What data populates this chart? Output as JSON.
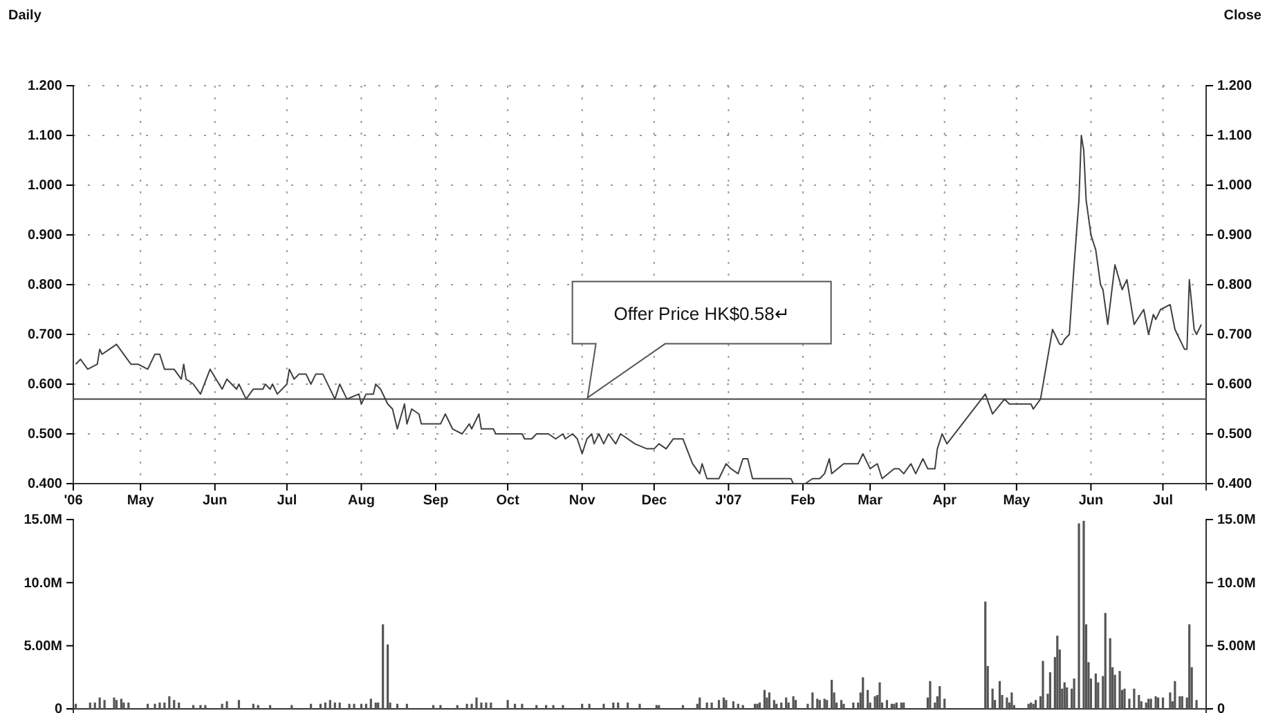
{
  "chart_data": [
    {
      "type": "line",
      "title": "Daily",
      "y2label": "Close",
      "grid": true,
      "xlim": [
        "2006-04-03",
        "2007-07-19"
      ],
      "xticks": [
        {
          "value": "2006-04-03",
          "label": "'06"
        },
        {
          "value": "2006-05-01",
          "label": "May"
        },
        {
          "value": "2006-06-01",
          "label": "Jun"
        },
        {
          "value": "2006-07-01",
          "label": "Jul"
        },
        {
          "value": "2006-08-01",
          "label": "Aug"
        },
        {
          "value": "2006-09-01",
          "label": "Sep"
        },
        {
          "value": "2006-10-01",
          "label": "Oct"
        },
        {
          "value": "2006-11-01",
          "label": "Nov"
        },
        {
          "value": "2006-12-01",
          "label": "Dec"
        },
        {
          "value": "2007-01-01",
          "label": "J'07"
        },
        {
          "value": "2007-02-01",
          "label": "Feb"
        },
        {
          "value": "2007-03-01",
          "label": "Mar"
        },
        {
          "value": "2007-04-01",
          "label": "Apr"
        },
        {
          "value": "2007-05-01",
          "label": "May"
        },
        {
          "value": "2007-06-01",
          "label": "Jun"
        },
        {
          "value": "2007-07-01",
          "label": "Jul"
        }
      ],
      "ylim": [
        0.4,
        1.2
      ],
      "yticks": [
        {
          "value": 0.4,
          "label": "0.400"
        },
        {
          "value": 0.5,
          "label": "0.500"
        },
        {
          "value": 0.6,
          "label": "0.600"
        },
        {
          "value": 0.7,
          "label": "0.700"
        },
        {
          "value": 0.8,
          "label": "0.800"
        },
        {
          "value": 0.9,
          "label": "0.900"
        },
        {
          "value": 1.0,
          "label": "1.000"
        },
        {
          "value": 1.1,
          "label": "1.100"
        },
        {
          "value": 1.2,
          "label": "1.200"
        }
      ],
      "y2lim": [
        0.4,
        1.2
      ],
      "y2ticks": [
        {
          "value": 0.4,
          "label": "0.400"
        },
        {
          "value": 0.5,
          "label": "0.500"
        },
        {
          "value": 0.6,
          "label": "0.600"
        },
        {
          "value": 0.7,
          "label": "0.700"
        },
        {
          "value": 0.8,
          "label": "0.800"
        },
        {
          "value": 0.9,
          "label": "0.900"
        },
        {
          "value": 1.0,
          "label": "1.000"
        },
        {
          "value": 1.1,
          "label": "1.100"
        },
        {
          "value": 1.2,
          "label": "1.200"
        }
      ],
      "ref_lines": [
        {
          "axis": "y",
          "value": 0.57,
          "color": "#555555"
        }
      ],
      "annotations": [
        "Offer Price HK$0.58↵"
      ],
      "series": [
        {
          "color": "#404040",
          "x": [
            "2006-04-04",
            "2006-04-06",
            "2006-04-09",
            "2006-04-13",
            "2006-04-14",
            "2006-04-15",
            "2006-04-21",
            "2006-04-27",
            "2006-04-30",
            "2006-05-04",
            "2006-05-07",
            "2006-05-09",
            "2006-05-11",
            "2006-05-15",
            "2006-05-18",
            "2006-05-19",
            "2006-05-20",
            "2006-05-23",
            "2006-05-26",
            "2006-05-30",
            "2006-06-04",
            "2006-06-06",
            "2006-06-10",
            "2006-06-11",
            "2006-06-14",
            "2006-06-17",
            "2006-06-21",
            "2006-06-22",
            "2006-06-24",
            "2006-06-25",
            "2006-06-27",
            "2006-07-01",
            "2006-07-02",
            "2006-07-04",
            "2006-07-06",
            "2006-07-09",
            "2006-07-11",
            "2006-07-13",
            "2006-07-16",
            "2006-07-21",
            "2006-07-23",
            "2006-07-26",
            "2006-07-31",
            "2006-08-01",
            "2006-08-03",
            "2006-08-06",
            "2006-08-07",
            "2006-08-09",
            "2006-08-12",
            "2006-08-14",
            "2006-08-16",
            "2006-08-19",
            "2006-08-20",
            "2006-08-22",
            "2006-08-25",
            "2006-08-26",
            "2006-09-03",
            "2006-09-05",
            "2006-09-08",
            "2006-09-12",
            "2006-09-15",
            "2006-09-16",
            "2006-09-19",
            "2006-09-20",
            "2006-09-25",
            "2006-09-26",
            "2006-10-07",
            "2006-10-08",
            "2006-10-11",
            "2006-10-13",
            "2006-10-18",
            "2006-10-21",
            "2006-10-24",
            "2006-10-25",
            "2006-10-28",
            "2006-10-30",
            "2006-11-01",
            "2006-11-03",
            "2006-11-05",
            "2006-11-06",
            "2006-11-08",
            "2006-11-10",
            "2006-11-12",
            "2006-11-15",
            "2006-11-17",
            "2006-11-23",
            "2006-11-28",
            "2006-12-01",
            "2006-12-03",
            "2006-12-06",
            "2006-12-09",
            "2006-12-13",
            "2006-12-17",
            "2006-12-20",
            "2006-12-21",
            "2006-12-23",
            "2006-12-28",
            "2006-12-31",
            "2007-01-02",
            "2007-01-05",
            "2007-01-07",
            "2007-01-09",
            "2007-01-11",
            "2007-01-19",
            "2007-01-27",
            "2007-01-28",
            "2007-02-02",
            "2007-02-05",
            "2007-02-08",
            "2007-02-10",
            "2007-02-12",
            "2007-02-13",
            "2007-02-18",
            "2007-02-24",
            "2007-02-26",
            "2007-03-01",
            "2007-03-04",
            "2007-03-06",
            "2007-03-11",
            "2007-03-13",
            "2007-03-15",
            "2007-03-18",
            "2007-03-20",
            "2007-03-23",
            "2007-03-25",
            "2007-03-28",
            "2007-03-29",
            "2007-03-31",
            "2007-04-02",
            "2007-04-18",
            "2007-04-21",
            "2007-04-26",
            "2007-04-28",
            "2007-05-07",
            "2007-05-08",
            "2007-05-11",
            "2007-05-16",
            "2007-05-19",
            "2007-05-20",
            "2007-05-21",
            "2007-05-23",
            "2007-05-25",
            "2007-05-27",
            "2007-05-28",
            "2007-05-29",
            "2007-05-30",
            "2007-06-01",
            "2007-06-03",
            "2007-06-05",
            "2007-06-06",
            "2007-06-08",
            "2007-06-11",
            "2007-06-14",
            "2007-06-16",
            "2007-06-19",
            "2007-06-23",
            "2007-06-25",
            "2007-06-27",
            "2007-06-28",
            "2007-06-30",
            "2007-07-04",
            "2007-07-06",
            "2007-07-10",
            "2007-07-11",
            "2007-07-12",
            "2007-07-14",
            "2007-07-15",
            "2007-07-17"
          ],
          "values": [
            0.64,
            0.65,
            0.63,
            0.64,
            0.67,
            0.66,
            0.68,
            0.64,
            0.64,
            0.63,
            0.66,
            0.66,
            0.63,
            0.63,
            0.61,
            0.64,
            0.61,
            0.6,
            0.58,
            0.63,
            0.59,
            0.61,
            0.59,
            0.6,
            0.57,
            0.59,
            0.59,
            0.6,
            0.59,
            0.6,
            0.58,
            0.6,
            0.63,
            0.61,
            0.62,
            0.62,
            0.6,
            0.62,
            0.62,
            0.57,
            0.6,
            0.57,
            0.58,
            0.56,
            0.58,
            0.58,
            0.6,
            0.59,
            0.56,
            0.55,
            0.51,
            0.56,
            0.52,
            0.55,
            0.54,
            0.52,
            0.52,
            0.54,
            0.51,
            0.5,
            0.52,
            0.51,
            0.54,
            0.51,
            0.51,
            0.5,
            0.5,
            0.49,
            0.49,
            0.5,
            0.5,
            0.49,
            0.5,
            0.49,
            0.5,
            0.49,
            0.46,
            0.49,
            0.5,
            0.48,
            0.5,
            0.48,
            0.5,
            0.48,
            0.5,
            0.48,
            0.47,
            0.47,
            0.48,
            0.47,
            0.49,
            0.49,
            0.44,
            0.42,
            0.44,
            0.41,
            0.41,
            0.44,
            0.43,
            0.42,
            0.45,
            0.45,
            0.41,
            0.41,
            0.41,
            0.4,
            0.4,
            0.41,
            0.41,
            0.42,
            0.45,
            0.42,
            0.44,
            0.44,
            0.46,
            0.43,
            0.44,
            0.41,
            0.43,
            0.43,
            0.42,
            0.44,
            0.42,
            0.45,
            0.43,
            0.43,
            0.47,
            0.5,
            0.48,
            0.58,
            0.54,
            0.57,
            0.56,
            0.56,
            0.55,
            0.57,
            0.71,
            0.68,
            0.68,
            0.69,
            0.7,
            0.84,
            0.97,
            1.1,
            1.07,
            0.97,
            0.9,
            0.87,
            0.8,
            0.79,
            0.72,
            0.84,
            0.79,
            0.81,
            0.72,
            0.75,
            0.7,
            0.74,
            0.73,
            0.75,
            0.76,
            0.71,
            0.67,
            0.67,
            0.81,
            0.71,
            0.7,
            0.72
          ]
        }
      ]
    },
    {
      "type": "bar",
      "tick_labels": "y",
      "xlim": [
        "2006-04-03",
        "2007-07-19"
      ],
      "ylim": [
        0,
        15
      ],
      "yticks": [
        0,
        {
          "value": 5,
          "label": "5.00M"
        },
        {
          "value": 10,
          "label": "10.0M"
        },
        {
          "value": 15,
          "label": "15.0M"
        }
      ],
      "y2lim": [
        0,
        15
      ],
      "y2ticks": [
        0,
        {
          "value": 5,
          "label": "5.00M"
        },
        {
          "value": 10,
          "label": "10.0M"
        },
        {
          "value": 15,
          "label": "15.0M"
        }
      ],
      "series": [
        {
          "color": "#555555",
          "x": [
            "2006-04-04",
            "2006-04-10",
            "2006-04-12",
            "2006-04-14",
            "2006-04-16",
            "2006-04-20",
            "2006-04-21",
            "2006-04-23",
            "2006-04-24",
            "2006-04-26",
            "2006-05-04",
            "2006-05-07",
            "2006-05-09",
            "2006-05-11",
            "2006-05-13",
            "2006-05-15",
            "2006-05-17",
            "2006-05-23",
            "2006-05-26",
            "2006-05-28",
            "2006-06-04",
            "2006-06-06",
            "2006-06-11",
            "2006-06-17",
            "2006-06-19",
            "2006-06-24",
            "2006-07-03",
            "2006-07-11",
            "2006-07-15",
            "2006-07-17",
            "2006-07-19",
            "2006-07-21",
            "2006-07-23",
            "2006-07-27",
            "2006-07-29",
            "2006-08-01",
            "2006-08-03",
            "2006-08-05",
            "2006-08-07",
            "2006-08-08",
            "2006-08-10",
            "2006-08-12",
            "2006-08-13",
            "2006-08-16",
            "2006-08-20",
            "2006-08-31",
            "2006-09-03",
            "2006-09-10",
            "2006-09-14",
            "2006-09-16",
            "2006-09-18",
            "2006-09-20",
            "2006-09-22",
            "2006-09-24",
            "2006-10-01",
            "2006-10-04",
            "2006-10-07",
            "2006-10-13",
            "2006-10-17",
            "2006-10-20",
            "2006-10-24",
            "2006-11-01",
            "2006-11-04",
            "2006-11-10",
            "2006-11-14",
            "2006-11-16",
            "2006-11-20",
            "2006-11-25",
            "2006-12-02",
            "2006-12-03",
            "2006-12-13",
            "2006-12-19",
            "2006-12-20",
            "2006-12-23",
            "2006-12-25",
            "2006-12-28",
            "2006-12-30",
            "2006-12-31",
            "2007-01-03",
            "2007-01-05",
            "2007-01-07",
            "2007-01-12",
            "2007-01-13",
            "2007-01-14",
            "2007-01-16",
            "2007-01-17",
            "2007-01-18",
            "2007-01-20",
            "2007-01-21",
            "2007-01-23",
            "2007-01-25",
            "2007-01-26",
            "2007-01-28",
            "2007-01-29",
            "2007-02-03",
            "2007-02-05",
            "2007-02-07",
            "2007-02-08",
            "2007-02-10",
            "2007-02-11",
            "2007-02-13",
            "2007-02-14",
            "2007-02-15",
            "2007-02-17",
            "2007-02-18",
            "2007-02-22",
            "2007-02-24",
            "2007-02-25",
            "2007-02-26",
            "2007-02-28",
            "2007-03-01",
            "2007-03-03",
            "2007-03-04",
            "2007-03-05",
            "2007-03-06",
            "2007-03-08",
            "2007-03-10",
            "2007-03-11",
            "2007-03-12",
            "2007-03-14",
            "2007-03-15",
            "2007-03-25",
            "2007-03-26",
            "2007-03-28",
            "2007-03-29",
            "2007-03-30",
            "2007-04-01",
            "2007-04-18",
            "2007-04-19",
            "2007-04-21",
            "2007-04-22",
            "2007-04-24",
            "2007-04-25",
            "2007-04-27",
            "2007-04-28",
            "2007-04-29",
            "2007-04-30",
            "2007-05-06",
            "2007-05-07",
            "2007-05-08",
            "2007-05-09",
            "2007-05-11",
            "2007-05-12",
            "2007-05-14",
            "2007-05-15",
            "2007-05-17",
            "2007-05-18",
            "2007-05-19",
            "2007-05-20",
            "2007-05-21",
            "2007-05-22",
            "2007-05-24",
            "2007-05-25",
            "2007-05-27",
            "2007-05-29",
            "2007-05-30",
            "2007-05-31",
            "2007-06-01",
            "2007-06-03",
            "2007-06-04",
            "2007-06-06",
            "2007-06-07",
            "2007-06-09",
            "2007-06-10",
            "2007-06-11",
            "2007-06-13",
            "2007-06-14",
            "2007-06-15",
            "2007-06-17",
            "2007-06-19",
            "2007-06-21",
            "2007-06-22",
            "2007-06-24",
            "2007-06-25",
            "2007-06-26",
            "2007-06-28",
            "2007-06-29",
            "2007-07-01",
            "2007-07-04",
            "2007-07-05",
            "2007-07-06",
            "2007-07-08",
            "2007-07-09",
            "2007-07-11",
            "2007-07-12",
            "2007-07-13",
            "2007-07-15"
          ],
          "values": [
            0.4,
            0.5,
            0.5,
            0.9,
            0.7,
            0.9,
            0.7,
            0.8,
            0.5,
            0.5,
            0.4,
            0.4,
            0.5,
            0.5,
            1.0,
            0.7,
            0.5,
            0.3,
            0.3,
            0.3,
            0.4,
            0.6,
            0.7,
            0.4,
            0.3,
            0.3,
            0.3,
            0.4,
            0.4,
            0.5,
            0.7,
            0.5,
            0.5,
            0.4,
            0.4,
            0.4,
            0.4,
            0.8,
            0.5,
            0.5,
            6.7,
            5.1,
            0.5,
            0.4,
            0.4,
            0.3,
            0.3,
            0.3,
            0.4,
            0.4,
            0.9,
            0.5,
            0.5,
            0.5,
            0.7,
            0.4,
            0.4,
            0.3,
            0.3,
            0.3,
            0.3,
            0.4,
            0.4,
            0.4,
            0.5,
            0.5,
            0.5,
            0.4,
            0.3,
            0.3,
            0.3,
            0.4,
            0.9,
            0.5,
            0.5,
            0.7,
            0.9,
            0.7,
            0.6,
            0.4,
            0.3,
            0.4,
            0.4,
            0.5,
            1.5,
            0.9,
            1.3,
            0.7,
            0.4,
            0.5,
            0.9,
            0.5,
            1.0,
            0.7,
            0.4,
            1.3,
            0.8,
            0.7,
            0.8,
            0.7,
            2.3,
            1.3,
            0.5,
            0.7,
            0.4,
            0.5,
            0.5,
            1.3,
            2.5,
            1.5,
            0.5,
            1.0,
            1.1,
            2.1,
            0.5,
            0.7,
            0.4,
            0.4,
            0.5,
            0.5,
            0.5,
            0.9,
            2.2,
            0.5,
            1.0,
            1.8,
            0.8,
            8.5,
            3.4,
            1.6,
            0.7,
            2.2,
            1.1,
            0.9,
            0.5,
            1.3,
            0.3,
            0.4,
            0.5,
            0.4,
            0.7,
            1.0,
            3.8,
            1.2,
            2.9,
            4.1,
            5.8,
            4.7,
            1.6,
            2.1,
            1.7,
            1.6,
            2.4,
            14.7,
            14.9,
            6.7,
            3.7,
            2.4,
            2.8,
            2.1,
            2.6,
            7.6,
            5.6,
            3.3,
            2.7,
            3.0,
            1.5,
            1.6,
            0.8,
            1.6,
            1.1,
            0.6,
            0.5,
            0.8,
            0.8,
            1.0,
            0.9,
            0.9,
            1.3,
            0.6,
            2.2,
            1.0,
            1.0,
            0.9,
            6.7,
            3.3,
            0.7
          ]
        }
      ]
    }
  ]
}
